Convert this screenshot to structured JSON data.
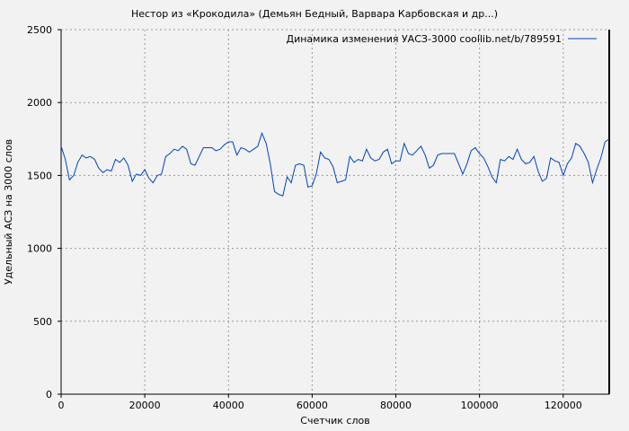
{
  "chart_data": {
    "type": "line",
    "title": "Нестор из «Крокодила» (Демьян Бедный, Варвара Карбовская и др...)",
    "xlabel": "Счетчик слов",
    "ylabel": "Удельный АСЗ на 3000 слов",
    "xlim": [
      0,
      131000
    ],
    "ylim": [
      0,
      2500
    ],
    "grid": true,
    "legend_position": "top-right",
    "x_ticks": [
      "0",
      "20000",
      "40000",
      "60000",
      "80000",
      "100000",
      "120000"
    ],
    "y_ticks": [
      "0",
      "500",
      "1000",
      "1500",
      "2000",
      "2500"
    ],
    "series": [
      {
        "name": "Динамика изменения УАСЗ-3000 coollib.net/b/789591",
        "color": "#0044bb",
        "x": [
          0,
          1000,
          2000,
          3000,
          4000,
          5000,
          6000,
          7000,
          8000,
          9000,
          10000,
          11000,
          12000,
          13000,
          14000,
          15000,
          16000,
          17000,
          18000,
          19000,
          20000,
          21000,
          22000,
          23000,
          24000,
          25000,
          26000,
          27000,
          28000,
          29000,
          30000,
          31000,
          32000,
          33000,
          34000,
          35000,
          36000,
          37000,
          38000,
          39000,
          40000,
          41000,
          42000,
          43000,
          44000,
          45000,
          46000,
          47000,
          48000,
          49000,
          50000,
          51000,
          52000,
          53000,
          54000,
          55000,
          56000,
          57000,
          58000,
          59000,
          60000,
          61000,
          62000,
          63000,
          64000,
          65000,
          66000,
          67000,
          68000,
          69000,
          70000,
          71000,
          72000,
          73000,
          74000,
          75000,
          76000,
          77000,
          78000,
          79000,
          80000,
          81000,
          82000,
          83000,
          84000,
          85000,
          86000,
          87000,
          88000,
          89000,
          90000,
          91000,
          92000,
          93000,
          94000,
          95000,
          96000,
          97000,
          98000,
          99000,
          100000,
          101000,
          102000,
          103000,
          104000,
          105000,
          106000,
          107000,
          108000,
          109000,
          110000,
          111000,
          112000,
          113000,
          114000,
          115000,
          116000,
          117000,
          118000,
          119000,
          120000,
          121000,
          122000,
          123000,
          124000,
          125000,
          126000,
          127000,
          128000,
          129000,
          130000,
          131000
        ],
        "y": [
          1700,
          1610,
          1470,
          1500,
          1590,
          1640,
          1620,
          1630,
          1610,
          1550,
          1520,
          1540,
          1530,
          1610,
          1590,
          1620,
          1570,
          1460,
          1510,
          1500,
          1540,
          1480,
          1450,
          1500,
          1510,
          1630,
          1650,
          1680,
          1670,
          1700,
          1680,
          1580,
          1570,
          1630,
          1690,
          1690,
          1690,
          1670,
          1680,
          1710,
          1730,
          1730,
          1640,
          1690,
          1680,
          1660,
          1680,
          1700,
          1790,
          1720,
          1580,
          1390,
          1370,
          1360,
          1490,
          1450,
          1570,
          1580,
          1570,
          1420,
          1430,
          1510,
          1660,
          1620,
          1610,
          1560,
          1450,
          1460,
          1470,
          1630,
          1590,
          1610,
          1600,
          1680,
          1620,
          1600,
          1610,
          1660,
          1680,
          1580,
          1600,
          1600,
          1720,
          1650,
          1640,
          1670,
          1700,
          1640,
          1550,
          1570,
          1640,
          1650,
          1650,
          1650,
          1650,
          1580,
          1510,
          1580,
          1670,
          1690,
          1650,
          1620,
          1560,
          1490,
          1450,
          1610,
          1600,
          1630,
          1610,
          1680,
          1610,
          1580,
          1590,
          1630,
          1530,
          1460,
          1480,
          1620,
          1600,
          1590,
          1500,
          1580,
          1620,
          1720,
          1700,
          1650,
          1590,
          1450,
          1540,
          1620,
          1730,
          1750
        ]
      }
    ]
  }
}
